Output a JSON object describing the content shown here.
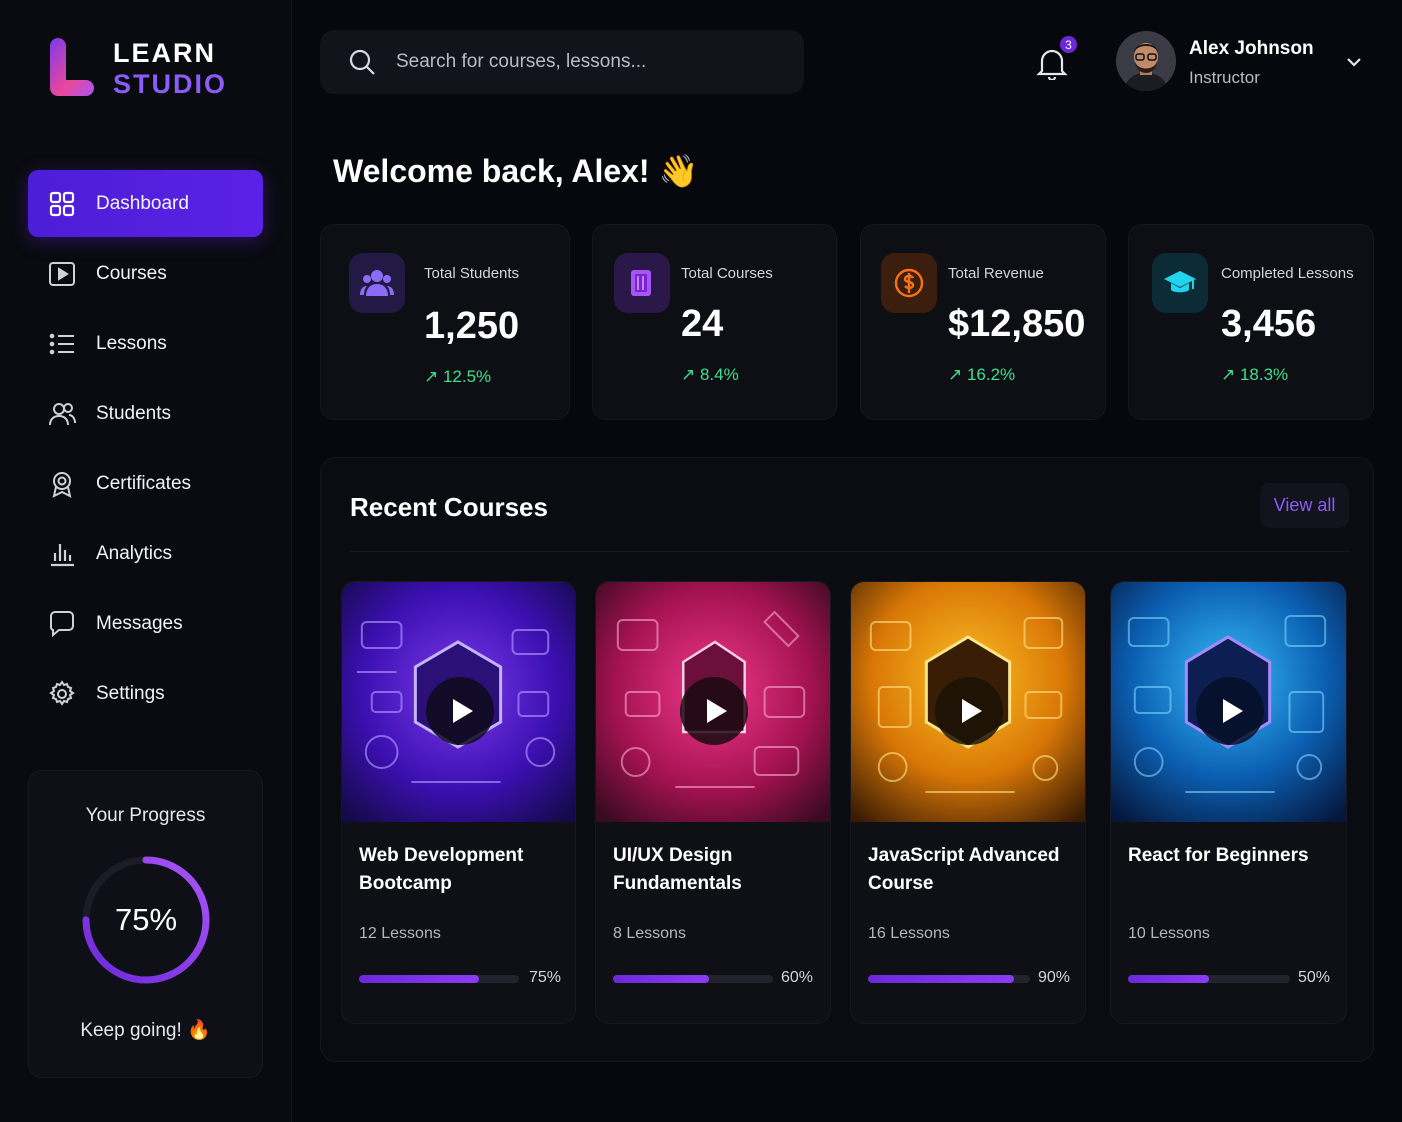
{
  "brand": {
    "line1": "LEARN",
    "line2": "STUDIO"
  },
  "nav": [
    {
      "label": "Dashboard",
      "icon": "grid-icon",
      "active": true
    },
    {
      "label": "Courses",
      "icon": "play-square-icon"
    },
    {
      "label": "Lessons",
      "icon": "list-icon"
    },
    {
      "label": "Students",
      "icon": "users-icon"
    },
    {
      "label": "Certificates",
      "icon": "award-icon"
    },
    {
      "label": "Analytics",
      "icon": "bar-chart-icon"
    },
    {
      "label": "Messages",
      "icon": "message-icon"
    },
    {
      "label": "Settings",
      "icon": "gear-icon"
    }
  ],
  "progress": {
    "title": "Your Progress",
    "value": 0.75,
    "value_label": "75%",
    "caption": "Keep going! 🔥"
  },
  "search": {
    "placeholder": "Search for courses, lessons..."
  },
  "notifications": {
    "count": "3"
  },
  "user": {
    "name": "Alex Johnson",
    "role": "Instructor"
  },
  "welcome": "Welcome back, Alex! 👋",
  "stats": [
    {
      "label": "Total Students",
      "value": "1,250",
      "change": "↗ 12.5%",
      "icon": "users-icon",
      "color": "#7c5cf6"
    },
    {
      "label": "Total Courses",
      "value": "24",
      "change": "↗ 8.4%",
      "icon": "book-icon",
      "color": "#a855f7"
    },
    {
      "label": "Total Revenue",
      "value": "$12,850",
      "change": "↗ 16.2%",
      "icon": "dollar-icon",
      "color": "#f97316"
    },
    {
      "label": "Completed Lessons",
      "value": "3,456",
      "change": "↗ 18.3%",
      "icon": "graduation-cap-icon",
      "color": "#22d3ee"
    }
  ],
  "recent": {
    "title": "Recent Courses",
    "view_all": "View all",
    "courses": [
      {
        "title": "Web Development Bootcamp",
        "lessons": "12 Lessons",
        "progress": 0.75,
        "progress_label": "75%",
        "theme": "#5b21e6"
      },
      {
        "title": "UI/UX Design Fundamentals",
        "lessons": "8 Lessons",
        "progress": 0.6,
        "progress_label": "60%",
        "theme": "#e11d74"
      },
      {
        "title": "JavaScript Advanced Course",
        "lessons": "16 Lessons",
        "progress": 0.9,
        "progress_label": "90%",
        "theme": "#f59e0b"
      },
      {
        "title": "React for Beginners",
        "lessons": "10 Lessons",
        "progress": 0.5,
        "progress_label": "50%",
        "theme": "#0ea5e9"
      }
    ]
  }
}
